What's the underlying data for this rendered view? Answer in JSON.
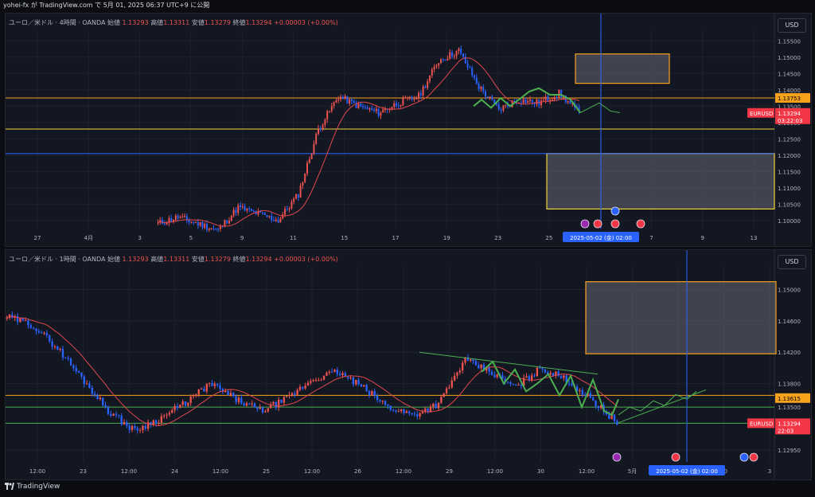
{
  "header": {
    "title": "yohei-fx が TradingView.com で 5月 01, 2025 06:37 UTC+9 に公開"
  },
  "footer": {
    "brand": "TradingView"
  },
  "panels": [
    {
      "currency": "USD",
      "legend_prefix": "ユーロ／米ドル · 4時間 · OANDA  始値",
      "open": "1.13293",
      "high_label": "高値",
      "high": "1.13311",
      "low_label": "安値",
      "low": "1.13279",
      "close_label": "終値",
      "close": "1.13294",
      "change": "+0.00003 (+0.00%)",
      "price_ticks": [
        "1.15500",
        "1.15000",
        "1.14500",
        "1.14000",
        "1.13500",
        "1.13000",
        "1.12500",
        "1.12000",
        "1.11500",
        "1.11000",
        "1.10500",
        "1.10000"
      ],
      "price_range": [
        1.0975,
        1.1585
      ],
      "time_ticks": [
        "27",
        "4月",
        "3",
        "5",
        "9",
        "11",
        "15",
        "17",
        "19",
        "23",
        "25",
        "29",
        "7",
        "9",
        "13"
      ],
      "badge_hline": "1.13753",
      "badge_symbol": "EURUSD",
      "badge_price": "1.13294",
      "badge_countdown": "03:22:03",
      "crosshair_label": "2025-05-02 (金)  02:00",
      "hlines": [
        {
          "price": 1.13753,
          "color": "#f7a21b"
        },
        {
          "price": 1.128,
          "color": "#f0d43a"
        },
        {
          "price": 1.1205,
          "color": "#2962ff"
        }
      ],
      "colors": {
        "up": "#ef5350",
        "down": "#2962ff",
        "ma": "#e0474c",
        "zone": "#f7a21b",
        "zone_yellow": "#f0d43a",
        "forecast": "#4caf50"
      }
    },
    {
      "currency": "USD",
      "legend_prefix": "ユーロ／米ドル · 1時間 · OANDA  始値",
      "open": "1.13293",
      "high_label": "高値",
      "high": "1.13311",
      "low_label": "安値",
      "low": "1.13279",
      "close_label": "終値",
      "close": "1.13294",
      "change": "+0.00003 (+0.00%)",
      "price_ticks": [
        "1.15000",
        "1.14600",
        "1.14200",
        "1.13800",
        "1.13500",
        "1.12950"
      ],
      "price_range": [
        1.128,
        1.153
      ],
      "time_ticks": [
        "12:00",
        "23",
        "12:00",
        "24",
        "12:00",
        "25",
        "12:00",
        "26",
        "12:00",
        "29",
        "12:00",
        "30",
        "12:00",
        "5月",
        "12:00",
        "00",
        "3"
      ],
      "badge_hline": "1.13615",
      "badge_symbol": "EURUSD",
      "badge_price": "1.13294",
      "badge_countdown": "22:03",
      "crosshair_label": "2025-05-02 (金)  02:00",
      "hlines": [
        {
          "price": 1.1365,
          "color": "#f7a21b"
        },
        {
          "price": 1.135,
          "color": "#4caf50"
        },
        {
          "price": 1.13294,
          "color": "#4caf50"
        }
      ],
      "colors": {
        "up": "#ef5350",
        "down": "#2962ff",
        "ma": "#e0474c",
        "zone": "#f7a21b",
        "forecast": "#4caf50"
      }
    }
  ]
}
